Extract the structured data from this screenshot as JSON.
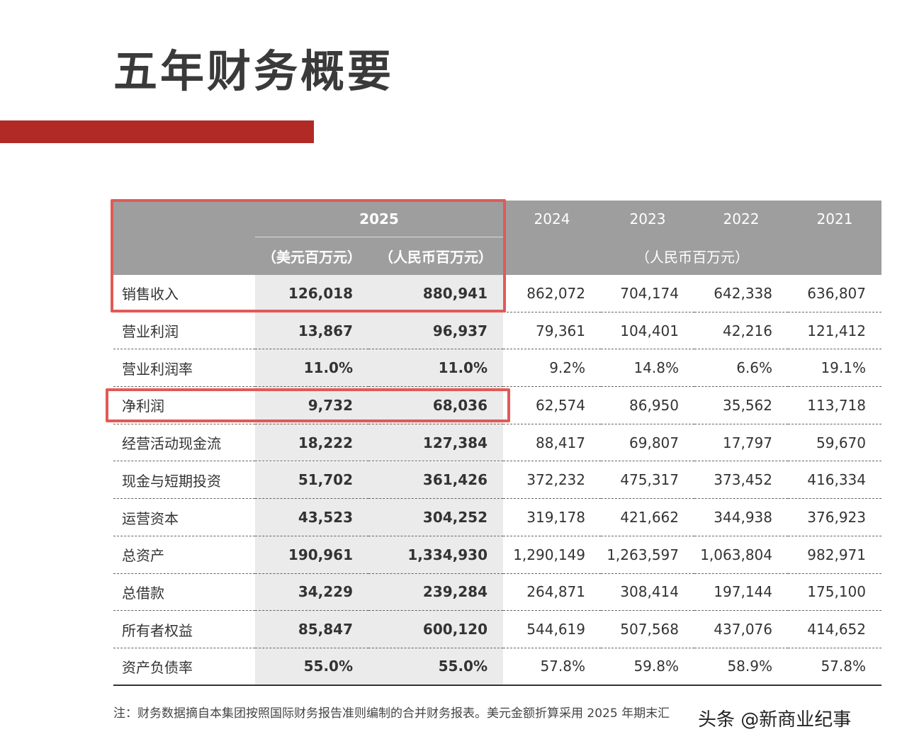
{
  "title": "五年财务概要",
  "table": {
    "years": [
      "2025",
      "2024",
      "2023",
      "2022",
      "2021"
    ],
    "units": {
      "usd": "（美元百万元）",
      "rmb": "（人民币百万元）",
      "history": "（人民币百万元）"
    },
    "rows": [
      [
        "销售收入",
        "126,018",
        "880,941",
        "862,072",
        "704,174",
        "642,338",
        "636,807"
      ],
      [
        "营业利润",
        "13,867",
        "96,937",
        "79,361",
        "104,401",
        "42,216",
        "121,412"
      ],
      [
        "营业利润率",
        "11.0%",
        "11.0%",
        "9.2%",
        "14.8%",
        "6.6%",
        "19.1%"
      ],
      [
        "净利润",
        "9,732",
        "68,036",
        "62,574",
        "86,950",
        "35,562",
        "113,718"
      ],
      [
        "经营活动现金流",
        "18,222",
        "127,384",
        "88,417",
        "69,807",
        "17,797",
        "59,670"
      ],
      [
        "现金与短期投资",
        "51,702",
        "361,426",
        "372,232",
        "475,317",
        "373,452",
        "416,334"
      ],
      [
        "运营资本",
        "43,523",
        "304,252",
        "319,178",
        "421,662",
        "344,938",
        "376,923"
      ],
      [
        "总资产",
        "190,961",
        "1,334,930",
        "1,290,149",
        "1,263,597",
        "1,063,804",
        "982,971"
      ],
      [
        "总借款",
        "34,229",
        "239,284",
        "264,871",
        "308,414",
        "197,144",
        "175,100"
      ],
      [
        "所有者权益",
        "85,847",
        "600,120",
        "544,619",
        "507,568",
        "437,076",
        "414,652"
      ],
      [
        "资产负债率",
        "55.0%",
        "55.0%",
        "57.8%",
        "59.8%",
        "58.9%",
        "57.8%"
      ]
    ]
  },
  "note": "注：财务数据摘自本集团按照国际财务报告准则编制的合并财务报表。美元金额折算采用 2025 年期末汇",
  "watermark": "头条 @新商业纪事"
}
